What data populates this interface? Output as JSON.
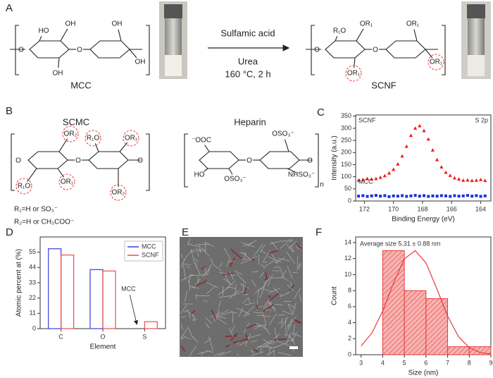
{
  "panel_labels": [
    "A",
    "B",
    "C",
    "D",
    "E",
    "F"
  ],
  "scheme": {
    "reagent": "Sulfamic acid",
    "conditions": [
      "Urea",
      "160 °C, 2 h"
    ],
    "start": "MCC",
    "product": "SCNF",
    "mcc_groups": [
      "O",
      "HO",
      "OH",
      "O",
      "OH",
      "OH",
      "OH"
    ],
    "scnf_groups": [
      "O",
      "R₁O",
      "OR₁",
      "O",
      "OR₁",
      "OR₁",
      "OR₁"
    ]
  },
  "structures": {
    "scmc": "SCMC",
    "heparin": "Heparin",
    "scmc_groups": [
      "O",
      "R₁O",
      "OR₁",
      "OR₂",
      "O",
      "R₁O",
      "OR₁",
      "OR₂",
      "O"
    ],
    "heparin_groups": [
      "⁻OOC",
      "HO",
      "OSO₃⁻",
      "O",
      "OSO₃⁻",
      "NHSO₃⁻",
      "O",
      "n"
    ],
    "r1": "R₁=H or SO₃⁻",
    "r2": "R₂=H or CH₃COO⁻"
  },
  "chart_data": [
    {
      "type": "scatter",
      "x_label": "Binding Energy (eV)",
      "y_label": "Intensity (a.u.)",
      "annotation": "S 2p",
      "x": [
        172.4,
        172.1,
        171.8,
        171.5,
        171.2,
        170.9,
        170.6,
        170.3,
        170.0,
        169.7,
        169.4,
        169.1,
        168.8,
        168.5,
        168.2,
        167.9,
        167.6,
        167.3,
        167.0,
        166.7,
        166.4,
        166.1,
        165.8,
        165.5,
        165.2,
        164.9,
        164.6,
        164.3,
        164.0,
        163.7
      ],
      "series": [
        {
          "name": "SCNF",
          "color": "#ee1c1c",
          "marker": "triangle",
          "values": [
            85,
            88,
            92,
            90,
            92,
            97,
            104,
            115,
            130,
            152,
            185,
            225,
            270,
            300,
            310,
            290,
            255,
            210,
            170,
            140,
            118,
            105,
            95,
            90,
            85,
            86,
            84,
            85,
            88,
            84
          ]
        },
        {
          "name": "MCC",
          "color": "#1c2fe0",
          "marker": "square",
          "values": [
            20,
            22,
            19,
            21,
            23,
            20,
            22,
            18,
            21,
            20,
            22,
            19,
            21,
            23,
            20,
            22,
            19,
            21,
            20,
            22,
            21,
            19,
            22,
            20,
            21,
            23,
            20,
            22,
            19,
            21
          ]
        }
      ],
      "xlim": [
        172.6,
        163.3
      ],
      "xticks": [
        172,
        170,
        168,
        166,
        164
      ],
      "ylim": [
        0,
        355
      ],
      "yticks": [
        0,
        50,
        100,
        150,
        200,
        250,
        300,
        350
      ]
    },
    {
      "type": "bar",
      "x_label": "Element",
      "y_label": "Atomic percent at (%)",
      "annotation": "MCC",
      "categories": [
        "C",
        "O",
        "S"
      ],
      "series": [
        {
          "name": "MCC",
          "color": "#3b3bdc",
          "values": [
            57.5,
            42.5,
            0
          ]
        },
        {
          "name": "SCNF",
          "color": "#ee4b4b",
          "values": [
            53,
            41.5,
            5
          ]
        }
      ],
      "ylim": [
        0,
        66
      ],
      "yticks": [
        0,
        11,
        22,
        33,
        44,
        55
      ],
      "legend": "upper right"
    },
    {
      "type": "histogram",
      "x_label": "Size (nm)",
      "y_label": "Count",
      "annotation": "Average size 5.31 ± 0.88 nm",
      "bins": [
        4,
        5,
        6,
        7,
        8,
        9
      ],
      "values": [
        13,
        8,
        7,
        1,
        1
      ],
      "color": "#e83a3a",
      "fit": {
        "x": [
          3,
          3.5,
          4,
          4.5,
          5,
          5.5,
          6,
          6.5,
          7,
          7.5,
          8,
          8.5,
          9
        ],
        "values": [
          1.09,
          2.7,
          5.45,
          8.95,
          11.96,
          13,
          11.47,
          8.24,
          4.82,
          2.28,
          0.88,
          0.28,
          0.07
        ]
      },
      "xlim": [
        2.75,
        9
      ],
      "xticks": [
        3,
        4,
        5,
        6,
        7,
        8,
        9
      ],
      "ylim": [
        0,
        14.7
      ],
      "yticks": [
        0,
        2,
        4,
        6,
        8,
        10,
        12,
        14
      ]
    }
  ]
}
